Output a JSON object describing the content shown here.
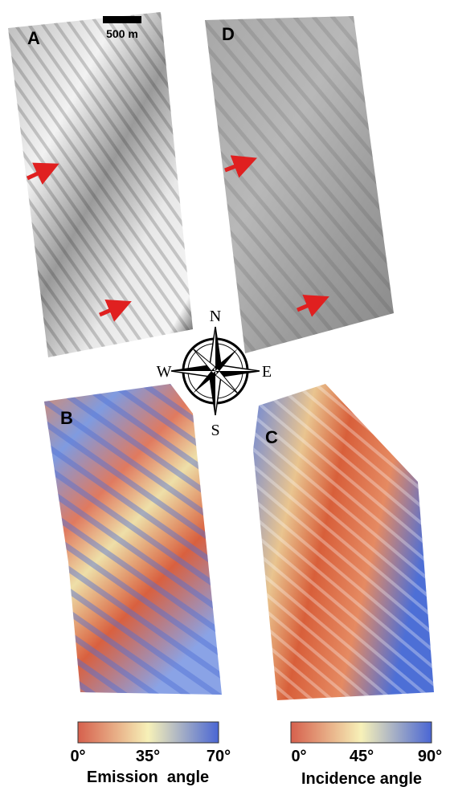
{
  "panels": {
    "a": {
      "label": "A",
      "scale_bar": "500 m"
    },
    "d": {
      "label": "D"
    },
    "b": {
      "label": "B"
    },
    "c": {
      "label": "C"
    }
  },
  "compass": {
    "n": "N",
    "s": "S",
    "w": "W",
    "e": "E"
  },
  "colorbars": [
    {
      "ticks": [
        "0°",
        "35°",
        "70°"
      ],
      "title": "Emission  angle"
    },
    {
      "ticks": [
        "0°",
        "45°",
        "90°"
      ],
      "title": "Incidence angle"
    }
  ]
}
